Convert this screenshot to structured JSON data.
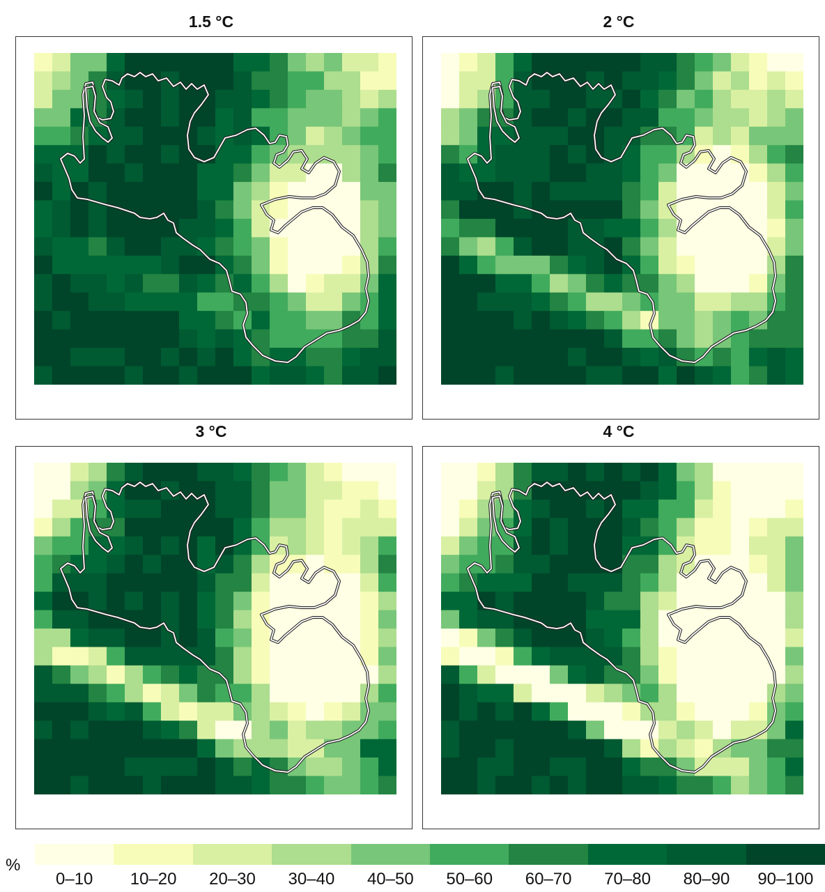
{
  "panels": [
    {
      "title": "1.5 °C",
      "level": 1
    },
    {
      "title": "2 °C",
      "level": 2
    },
    {
      "title": "3 °C",
      "level": 3
    },
    {
      "title": "4 °C",
      "level": 4
    }
  ],
  "legend": {
    "unit": "%",
    "bins": [
      "0–10",
      "10–20",
      "20–30",
      "30–40",
      "40–50",
      "50–60",
      "60–70",
      "70–80",
      "80–90",
      "90–100"
    ],
    "colors": [
      "#ffffe5",
      "#f7fcb9",
      "#d9f0a3",
      "#addd8e",
      "#78c679",
      "#41ab5d",
      "#238443",
      "#006837",
      "#005a32",
      "#004529"
    ]
  }
}
